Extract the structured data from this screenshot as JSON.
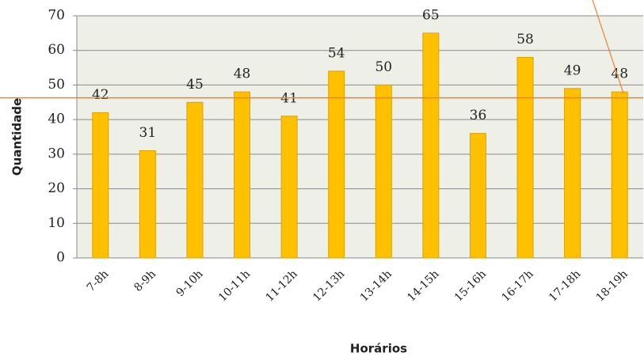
{
  "chart_data": {
    "type": "bar",
    "categories": [
      "7-8h",
      "8-9h",
      "9-10h",
      "10-11h",
      "11-12h",
      "12-13h",
      "13-14h",
      "14-15h",
      "15-16h",
      "16-17h",
      "17-18h",
      "18-19h"
    ],
    "values": [
      42,
      31,
      45,
      48,
      41,
      54,
      50,
      65,
      36,
      58,
      49,
      48
    ],
    "color": "#ffc000",
    "ylim": [
      0,
      70
    ],
    "yticks": [
      0,
      10,
      20,
      30,
      40,
      50,
      60,
      70
    ],
    "grid": true,
    "xlabel": "Horários",
    "ylabel": "Quantidade",
    "reference_line": {
      "value": 46.3,
      "color": "#f08030"
    }
  }
}
